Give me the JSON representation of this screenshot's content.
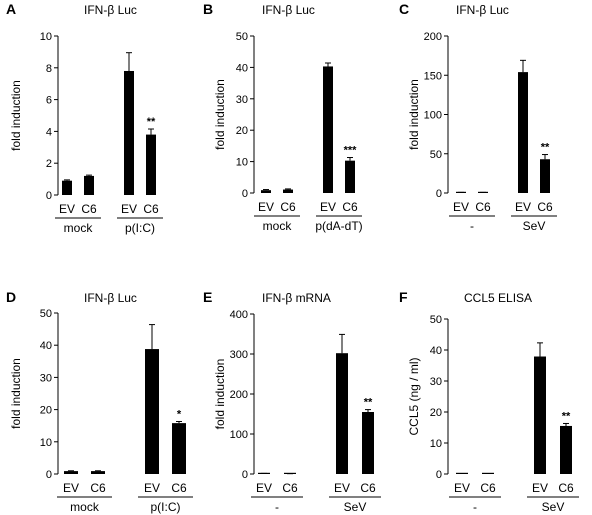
{
  "chart_data": [
    {
      "panel": "A",
      "type": "bar",
      "title": "IFN-β Luc",
      "ylabel": "fold induction",
      "ylim": [
        0,
        10
      ],
      "yticks": [
        0,
        2,
        4,
        6,
        8,
        10
      ],
      "categories": [
        "EV",
        "C6",
        "EV",
        "C6"
      ],
      "values": [
        0.9,
        1.2,
        7.8,
        3.8
      ],
      "errors": [
        0.05,
        0.05,
        1.15,
        0.35
      ],
      "significance": [
        "",
        "",
        "",
        "**"
      ],
      "groups": [
        {
          "label": "mock",
          "span": [
            0,
            1
          ]
        },
        {
          "label": "p(I:C)",
          "span": [
            2,
            3
          ]
        }
      ]
    },
    {
      "panel": "B",
      "type": "bar",
      "title": "IFN-β Luc",
      "ylabel": "fold induction",
      "ylim": [
        0,
        50
      ],
      "yticks": [
        0,
        10,
        20,
        30,
        40,
        50
      ],
      "categories": [
        "EV",
        "C6",
        "EV",
        "C6"
      ],
      "values": [
        0.9,
        1.1,
        40.3,
        10.3
      ],
      "errors": [
        0.2,
        0.2,
        1.1,
        1.0
      ],
      "significance": [
        "",
        "",
        "",
        "***"
      ],
      "groups": [
        {
          "label": "mock",
          "span": [
            0,
            1
          ]
        },
        {
          "label": "p(dA-dT)",
          "span": [
            2,
            3
          ]
        }
      ]
    },
    {
      "panel": "C",
      "type": "bar",
      "title": "IFN-β Luc",
      "ylabel": "fold induction",
      "ylim": [
        0,
        200
      ],
      "yticks": [
        0,
        50,
        100,
        150,
        200
      ],
      "categories": [
        "EV",
        "C6",
        "EV",
        "C6"
      ],
      "values": [
        0.5,
        0.5,
        154,
        43
      ],
      "errors": [
        0.3,
        0.3,
        15,
        6
      ],
      "significance": [
        "",
        "",
        "",
        "**"
      ],
      "groups": [
        {
          "label": "-",
          "span": [
            0,
            1
          ]
        },
        {
          "label": "SeV",
          "span": [
            2,
            3
          ]
        }
      ]
    },
    {
      "panel": "D",
      "type": "bar",
      "title": "IFN-β Luc",
      "ylabel": "fold induction",
      "ylim": [
        0,
        50
      ],
      "yticks": [
        0,
        10,
        20,
        30,
        40,
        50
      ],
      "categories": [
        "EV",
        "C6",
        "EV",
        "C6"
      ],
      "values": [
        0.9,
        0.9,
        38.8,
        15.8
      ],
      "errors": [
        0.1,
        0.1,
        7.6,
        0.5
      ],
      "significance": [
        "",
        "",
        "",
        "*"
      ],
      "groups": [
        {
          "label": "mock",
          "span": [
            0,
            1
          ]
        },
        {
          "label": "p(I:C)",
          "span": [
            2,
            3
          ]
        }
      ]
    },
    {
      "panel": "E",
      "type": "bar",
      "title": "IFN-β mRNA",
      "ylabel": "fold induction",
      "ylim": [
        0,
        400
      ],
      "yticks": [
        0,
        100,
        200,
        300,
        400
      ],
      "categories": [
        "EV",
        "C6",
        "EV",
        "C6"
      ],
      "values": [
        1,
        0.5,
        302,
        155
      ],
      "errors": [
        0.5,
        0.3,
        47,
        6
      ],
      "significance": [
        "",
        "",
        "",
        "**"
      ],
      "groups": [
        {
          "label": "-",
          "span": [
            0,
            1
          ]
        },
        {
          "label": "SeV",
          "span": [
            2,
            3
          ]
        }
      ]
    },
    {
      "panel": "F",
      "type": "bar",
      "title": "CCL5 ELISA",
      "ylabel": "CCL5 (ng / ml)",
      "ylim": [
        0,
        50
      ],
      "yticks": [
        0,
        10,
        20,
        30,
        40,
        50
      ],
      "categories": [
        "EV",
        "C6",
        "EV",
        "C6"
      ],
      "values": [
        0,
        0,
        37.9,
        15.5
      ],
      "errors": [
        0,
        0,
        4.4,
        0.8
      ],
      "significance": [
        "",
        "",
        "",
        "**"
      ],
      "groups": [
        {
          "label": "-",
          "span": [
            0,
            1
          ]
        },
        {
          "label": "SeV",
          "span": [
            2,
            3
          ]
        }
      ]
    }
  ]
}
